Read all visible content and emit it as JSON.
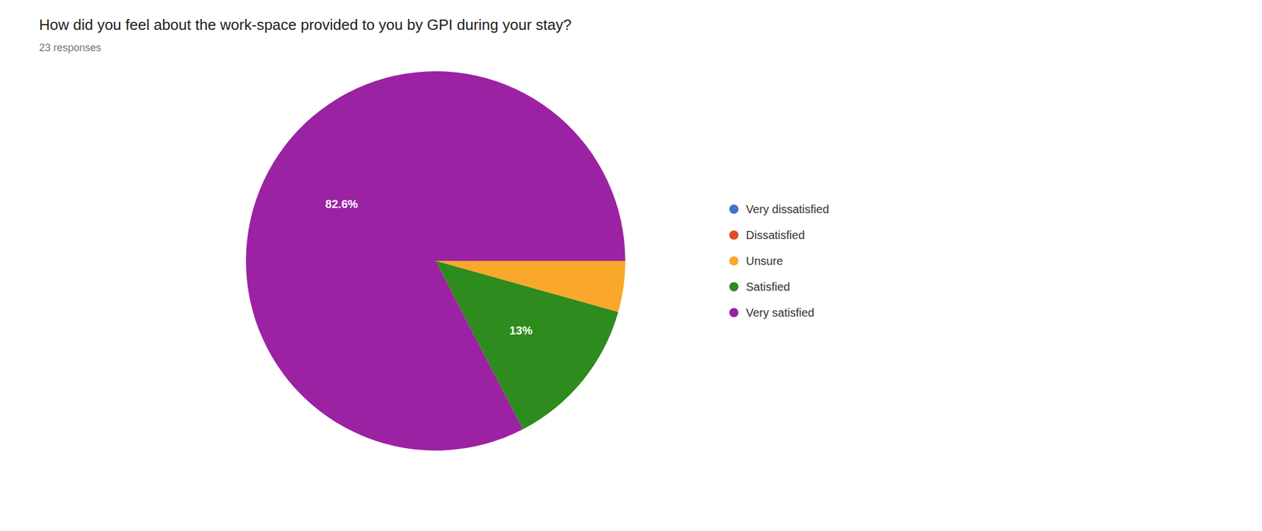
{
  "chart_data": {
    "type": "pie",
    "title": "How did you feel about the work-space provided to you by GPI during your stay?",
    "subtitle": "23 responses",
    "categories": [
      "Very dissatisfied",
      "Dissatisfied",
      "Unsure",
      "Satisfied",
      "Very satisfied"
    ],
    "values": [
      0,
      0,
      4.347826086956522,
      13.043478260869565,
      82.60869565217392
    ],
    "value_labels": [
      null,
      null,
      null,
      "13%",
      "82.6%"
    ],
    "colors": [
      "#4472c4",
      "#e04c23",
      "#f9a82b",
      "#2e8b1d",
      "#9b22a3"
    ],
    "data_labels": true,
    "legend": "right"
  }
}
